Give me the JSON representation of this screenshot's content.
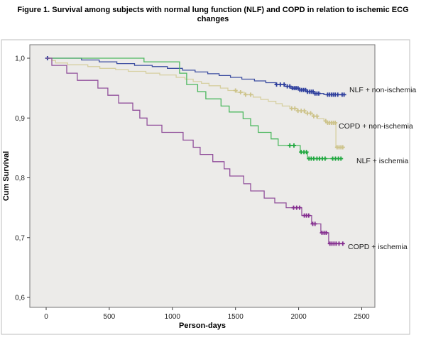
{
  "figure": {
    "title_lines": [
      "Figure 1. Survival among subjects with normal lung function (NLF) and COPD in relation to ischemic ECG",
      "changes"
    ]
  },
  "chart_data": {
    "type": "line",
    "subtype": "kaplan-meier-step-survival",
    "title": "Figure 1. Survival among subjects with normal lung function (NLF) and COPD in relation to ischemic ECG changes",
    "xlabel": "Person-days",
    "ylabel": "Cum Survival",
    "xlim": [
      0,
      2600
    ],
    "ylim": [
      0.58,
      1.0
    ],
    "grid": false,
    "legend_position": "inline-right-of-curves",
    "plot_bg": "#ECEBE9",
    "x_ticks": [
      0,
      500,
      1000,
      1500,
      2000,
      2500
    ],
    "y_ticks": [
      {
        "value": 1.0,
        "label": "1,0"
      },
      {
        "value": 0.9,
        "label": "0,9"
      },
      {
        "value": 0.8,
        "label": "0,8"
      },
      {
        "value": 0.7,
        "label": "0,7"
      },
      {
        "value": 0.6,
        "label": "0,6"
      }
    ],
    "series": [
      {
        "id": "nlf-non-ischemia",
        "label": "NLF + non-ischemia",
        "color": "#3D4EA1",
        "censor_color": "#2B3C9C",
        "points": [
          [
            0,
            1.0
          ],
          [
            280,
            0.997
          ],
          [
            420,
            0.994
          ],
          [
            560,
            0.991
          ],
          [
            700,
            0.988
          ],
          [
            840,
            0.986
          ],
          [
            960,
            0.983
          ],
          [
            1080,
            0.98
          ],
          [
            1180,
            0.977
          ],
          [
            1280,
            0.974
          ],
          [
            1370,
            0.971
          ],
          [
            1460,
            0.968
          ],
          [
            1550,
            0.965
          ],
          [
            1650,
            0.962
          ],
          [
            1740,
            0.959
          ],
          [
            1820,
            0.956
          ],
          [
            1890,
            0.953
          ],
          [
            1950,
            0.95
          ],
          [
            2010,
            0.947
          ],
          [
            2070,
            0.944
          ],
          [
            2130,
            0.941
          ],
          [
            2200,
            0.939
          ],
          [
            2360,
            0.939
          ]
        ],
        "censor_days": [
          10,
          1825,
          1855,
          1885,
          1910,
          1930,
          1950,
          1965,
          1980,
          1995,
          2010,
          2025,
          2040,
          2055,
          2070,
          2085,
          2100,
          2115,
          2130,
          2145,
          2160,
          2230,
          2245,
          2260,
          2275,
          2290,
          2310,
          2345,
          2360
        ]
      },
      {
        "id": "copd-non-ischemia",
        "label": "COPD + non-ischemia",
        "color": "#D6CFA0",
        "censor_color": "#CDC38A",
        "points": [
          [
            0,
            1.0
          ],
          [
            45,
            0.996
          ],
          [
            75,
            0.992
          ],
          [
            170,
            0.989
          ],
          [
            330,
            0.986
          ],
          [
            425,
            0.983
          ],
          [
            550,
            0.981
          ],
          [
            650,
            0.978
          ],
          [
            790,
            0.975
          ],
          [
            900,
            0.972
          ],
          [
            1030,
            0.968
          ],
          [
            1100,
            0.965
          ],
          [
            1165,
            0.961
          ],
          [
            1230,
            0.958
          ],
          [
            1290,
            0.954
          ],
          [
            1380,
            0.95
          ],
          [
            1440,
            0.946
          ],
          [
            1510,
            0.943
          ],
          [
            1570,
            0.939
          ],
          [
            1640,
            0.935
          ],
          [
            1700,
            0.931
          ],
          [
            1760,
            0.928
          ],
          [
            1820,
            0.924
          ],
          [
            1870,
            0.92
          ],
          [
            1930,
            0.916
          ],
          [
            1990,
            0.912
          ],
          [
            2050,
            0.908
          ],
          [
            2110,
            0.903
          ],
          [
            2150,
            0.899
          ],
          [
            2200,
            0.895
          ],
          [
            2230,
            0.892
          ],
          [
            2295,
            0.851
          ],
          [
            2355,
            0.851
          ]
        ],
        "censor_days": [
          1500,
          1540,
          1580,
          1620,
          1945,
          1970,
          1995,
          2020,
          2045,
          2070,
          2095,
          2120,
          2145,
          2215,
          2230,
          2245,
          2260,
          2275,
          2290,
          2305,
          2320,
          2335,
          2350
        ]
      },
      {
        "id": "nlf-ischemia",
        "label": "NLF + ischemia",
        "color": "#4CB85F",
        "censor_color": "#1EA73E",
        "points": [
          [
            0,
            1.0
          ],
          [
            775,
            0.994
          ],
          [
            1057,
            0.975
          ],
          [
            1113,
            0.956
          ],
          [
            1200,
            0.944
          ],
          [
            1265,
            0.932
          ],
          [
            1385,
            0.92
          ],
          [
            1450,
            0.91
          ],
          [
            1560,
            0.899
          ],
          [
            1620,
            0.887
          ],
          [
            1680,
            0.876
          ],
          [
            1782,
            0.865
          ],
          [
            1838,
            0.854
          ],
          [
            2013,
            0.843
          ],
          [
            2070,
            0.832
          ],
          [
            2335,
            0.832
          ]
        ],
        "censor_days": [
          1930,
          1963,
          2020,
          2042,
          2062,
          2082,
          2100,
          2120,
          2145,
          2165,
          2188,
          2210,
          2270,
          2292,
          2315,
          2335
        ]
      },
      {
        "id": "copd-ischemia",
        "label": "COPD + ischemia",
        "color": "#92519C",
        "censor_color": "#842D8F",
        "points": [
          [
            0,
            1.0
          ],
          [
            45,
            0.988
          ],
          [
            163,
            0.975
          ],
          [
            247,
            0.963
          ],
          [
            410,
            0.95
          ],
          [
            489,
            0.938
          ],
          [
            574,
            0.925
          ],
          [
            686,
            0.913
          ],
          [
            742,
            0.9
          ],
          [
            799,
            0.888
          ],
          [
            917,
            0.876
          ],
          [
            1085,
            0.863
          ],
          [
            1165,
            0.851
          ],
          [
            1220,
            0.839
          ],
          [
            1320,
            0.827
          ],
          [
            1410,
            0.815
          ],
          [
            1455,
            0.803
          ],
          [
            1565,
            0.79
          ],
          [
            1620,
            0.778
          ],
          [
            1727,
            0.766
          ],
          [
            1811,
            0.758
          ],
          [
            1901,
            0.75
          ],
          [
            2025,
            0.737
          ],
          [
            2103,
            0.723
          ],
          [
            2176,
            0.708
          ],
          [
            2238,
            0.69
          ],
          [
            2360,
            0.69
          ]
        ],
        "censor_days": [
          1960,
          1984,
          2008,
          2045,
          2062,
          2080,
          2112,
          2130,
          2185,
          2202,
          2218,
          2248,
          2264,
          2280,
          2297,
          2320,
          2350
        ]
      }
    ]
  }
}
